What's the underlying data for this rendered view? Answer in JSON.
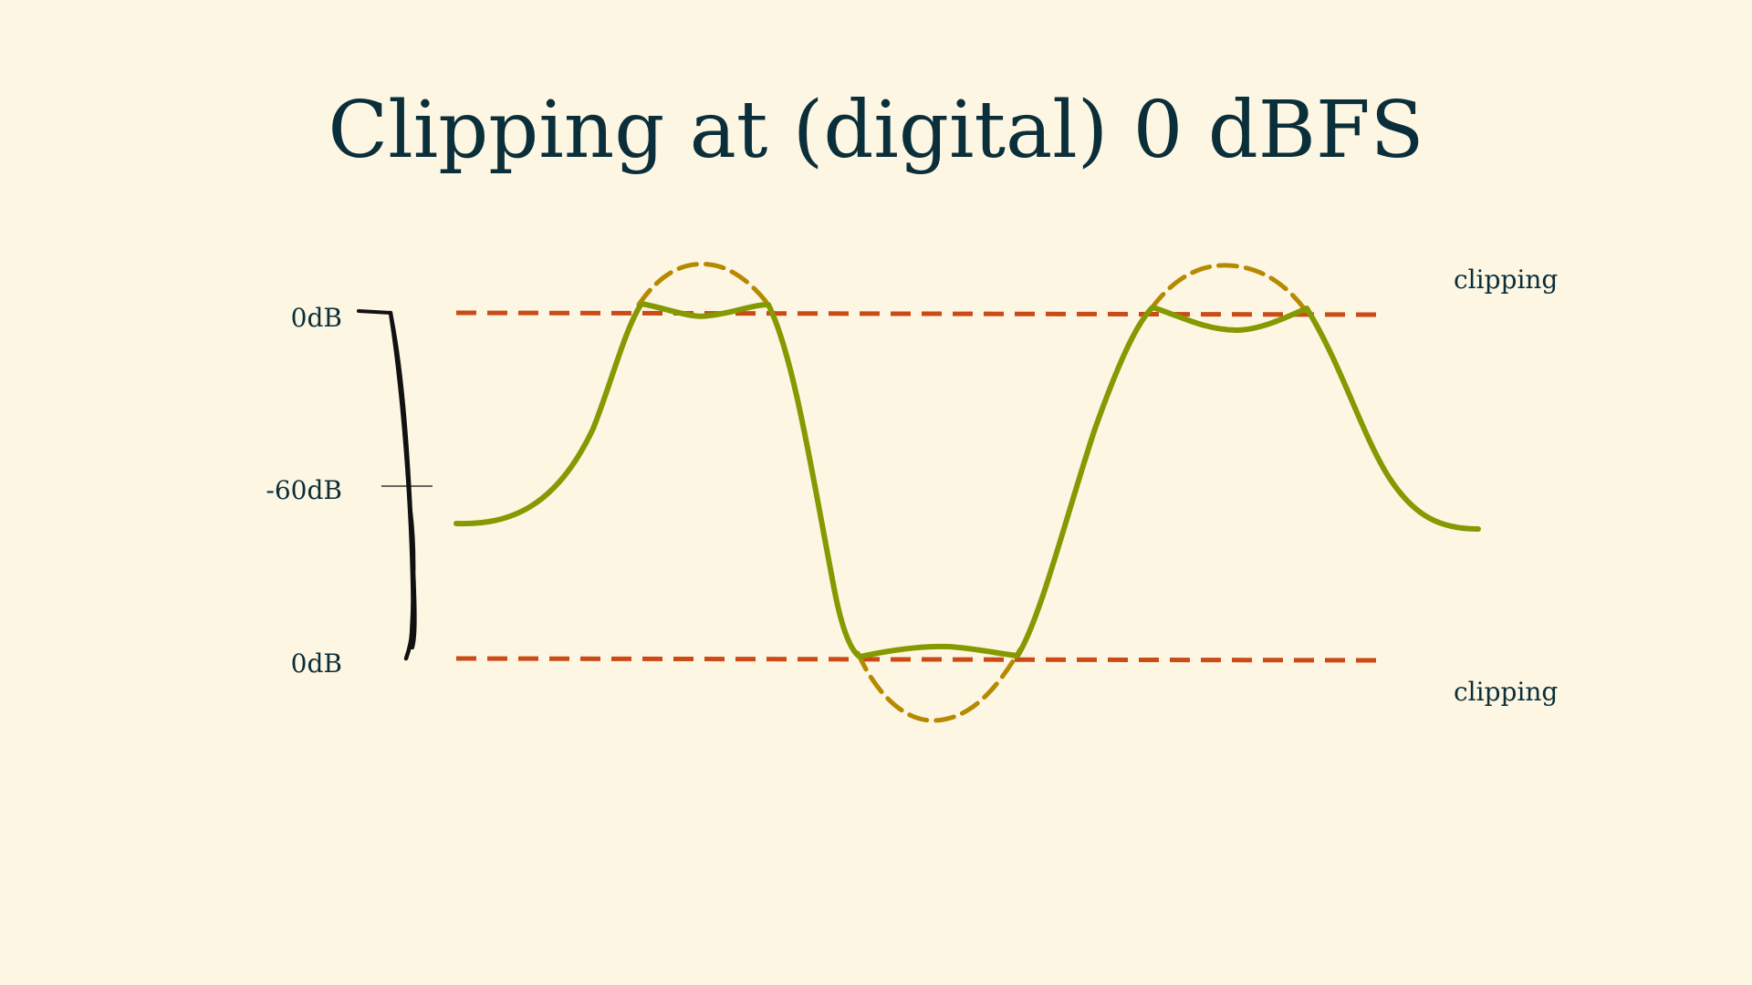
{
  "slide": {
    "title": "Clipping at (digital) 0 dBFS"
  },
  "scale": {
    "top_label": "0dB",
    "middle_label": "-60dB",
    "bottom_label": "0dB"
  },
  "thresholds": {
    "upper_label": "clipping",
    "lower_label": "clipping"
  },
  "colors": {
    "background": "#fdf6e3",
    "text": "#0b2f3a",
    "clipped_signal": "#859900",
    "original_signal": "#b58900",
    "clip_threshold": "#cb4b16",
    "scale_bracket": "#111111"
  }
}
